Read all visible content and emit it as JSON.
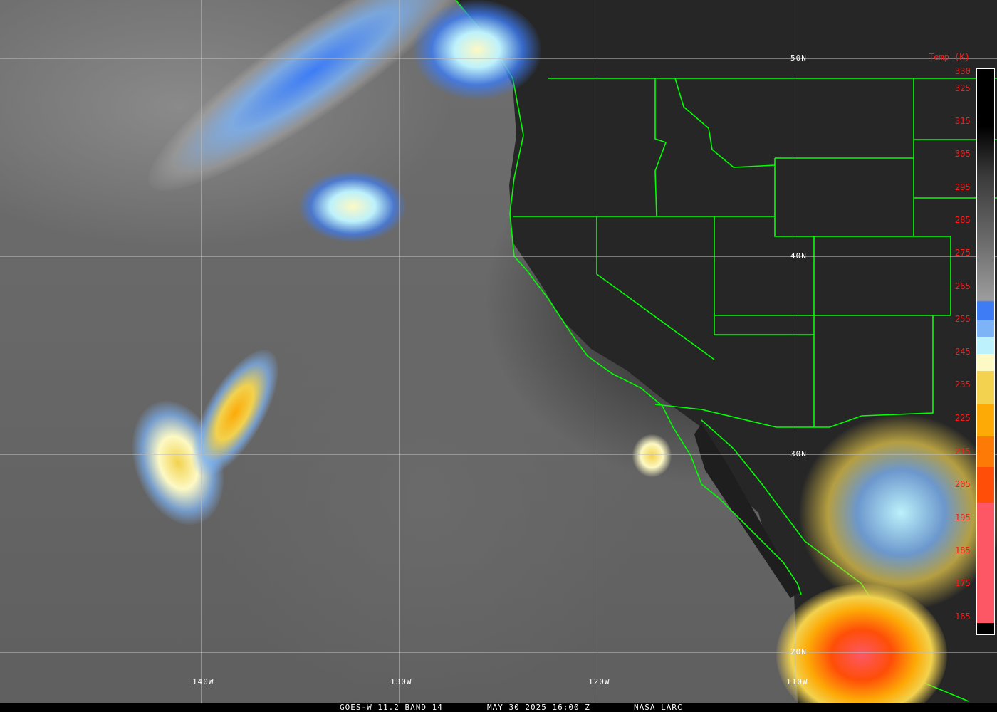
{
  "image": {
    "caption": {
      "satellite": "GOES-W 11.2 BAND 14",
      "datetime": "MAY 30 2025 16:00 Z",
      "source": "NASA LARC"
    },
    "latitude_labels": [
      "50N",
      "40N",
      "30N",
      "20N"
    ],
    "longitude_labels": [
      "140W",
      "130W",
      "120W",
      "110W"
    ],
    "colorbar": {
      "title": "Temp (K)",
      "ticks": [
        "330",
        "325",
        "315",
        "305",
        "295",
        "285",
        "275",
        "265",
        "255",
        "245",
        "235",
        "225",
        "215",
        "205",
        "195",
        "185",
        "175",
        "165"
      ],
      "colors": [
        "#000000",
        "#9d9d9d",
        "#3d7cf5",
        "#7db4f7",
        "#bdf1fb",
        "#fdf9c4",
        "#f2d24e",
        "#fdaa07",
        "#fd7a07",
        "#fe4e07",
        "#fd5766"
      ]
    },
    "boundary_color": "#00ff00",
    "label_color": "#ff1a1a"
  }
}
